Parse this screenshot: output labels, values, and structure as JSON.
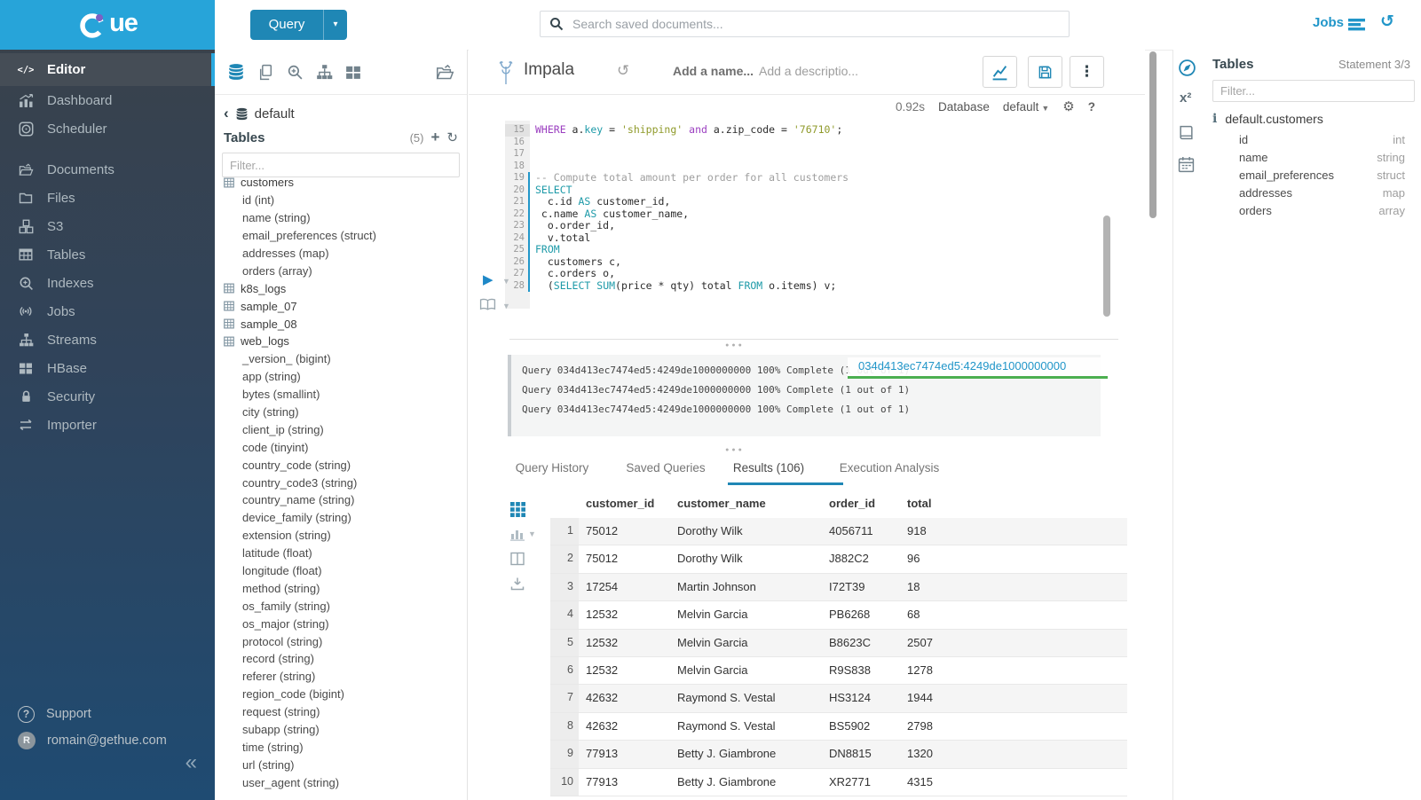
{
  "topbar": {
    "query_button": "Query",
    "search_placeholder": "Search saved documents...",
    "jobs_label": "Jobs"
  },
  "sidebar": {
    "logo_text": "ue",
    "items": [
      {
        "label": "Editor",
        "icon": "code-icon",
        "active": true
      },
      {
        "label": "Dashboard",
        "icon": "dashboard-icon"
      },
      {
        "label": "Scheduler",
        "icon": "scheduler-icon"
      },
      {
        "label": "Documents",
        "icon": "documents-icon",
        "gap_before": true
      },
      {
        "label": "Files",
        "icon": "files-icon"
      },
      {
        "label": "S3",
        "icon": "s3-icon"
      },
      {
        "label": "Tables",
        "icon": "tables-icon"
      },
      {
        "label": "Indexes",
        "icon": "indexes-icon"
      },
      {
        "label": "Jobs",
        "icon": "jobs-icon"
      },
      {
        "label": "Streams",
        "icon": "streams-icon"
      },
      {
        "label": "HBase",
        "icon": "hbase-icon"
      },
      {
        "label": "Security",
        "icon": "security-icon"
      },
      {
        "label": "Importer",
        "icon": "importer-icon"
      }
    ],
    "support_label": "Support",
    "user_email": "romain@gethue.com"
  },
  "left_assist": {
    "database": "default",
    "tables_label": "Tables",
    "tables_count": "(5)",
    "filter_placeholder": "Filter...",
    "tables": [
      {
        "name": "customers",
        "columns": [
          "id (int)",
          "name (string)",
          "email_preferences (struct)",
          "addresses (map)",
          "orders (array)"
        ]
      },
      {
        "name": "k8s_logs",
        "columns": []
      },
      {
        "name": "sample_07",
        "columns": []
      },
      {
        "name": "sample_08",
        "columns": []
      },
      {
        "name": "web_logs",
        "columns": [
          "_version_ (bigint)",
          "app (string)",
          "bytes (smallint)",
          "city (string)",
          "client_ip (string)",
          "code (tinyint)",
          "country_code (string)",
          "country_code3 (string)",
          "country_name (string)",
          "device_family (string)",
          "extension (string)",
          "latitude (float)",
          "longitude (float)",
          "method (string)",
          "os_family (string)",
          "os_major (string)",
          "protocol (string)",
          "record (string)",
          "referer (string)",
          "region_code (bigint)",
          "request (string)",
          "subapp (string)",
          "time (string)",
          "url (string)",
          "user_agent (string)"
        ]
      }
    ]
  },
  "editor": {
    "engine": "Impala",
    "name_placeholder": "Add a name...",
    "description_placeholder": "Add a descriptio...",
    "exec_time": "0.92s",
    "database_label": "Database",
    "database_value": "default"
  },
  "code": {
    "lines": [
      {
        "n": "15",
        "active": true,
        "tokens": [
          [
            "kp",
            "WHERE"
          ],
          [
            "t",
            " a."
          ],
          [
            "kt",
            "key"
          ],
          [
            "t",
            " = "
          ],
          [
            "str",
            "'shipping'"
          ],
          [
            "t",
            " "
          ],
          [
            "kp",
            "and"
          ],
          [
            "t",
            " a.zip_code = "
          ],
          [
            "str",
            "'76710'"
          ],
          [
            "t",
            ";"
          ]
        ]
      },
      {
        "n": "16",
        "tokens": []
      },
      {
        "n": "17",
        "tokens": []
      },
      {
        "n": "18",
        "tokens": []
      },
      {
        "n": "19",
        "stmt": true,
        "tokens": [
          [
            "cmt",
            "-- Compute total amount per order for all customers"
          ]
        ]
      },
      {
        "n": "20",
        "stmt": true,
        "tokens": [
          [
            "kt",
            "SELECT"
          ]
        ]
      },
      {
        "n": "21",
        "stmt": true,
        "tokens": [
          [
            "t",
            "  c.id "
          ],
          [
            "kt",
            "AS"
          ],
          [
            "t",
            " customer_id,"
          ]
        ]
      },
      {
        "n": "22",
        "stmt": true,
        "tokens": [
          [
            "t",
            " c.name "
          ],
          [
            "kt",
            "AS"
          ],
          [
            "t",
            " customer_name,"
          ]
        ]
      },
      {
        "n": "23",
        "stmt": true,
        "tokens": [
          [
            "t",
            "  o.order_id,"
          ]
        ]
      },
      {
        "n": "24",
        "stmt": true,
        "tokens": [
          [
            "t",
            "  v.total"
          ]
        ]
      },
      {
        "n": "25",
        "stmt": true,
        "tokens": [
          [
            "kt",
            "FROM"
          ]
        ]
      },
      {
        "n": "26",
        "stmt": true,
        "tokens": [
          [
            "t",
            "  customers c,"
          ]
        ]
      },
      {
        "n": "27",
        "stmt": true,
        "tokens": [
          [
            "t",
            "  c.orders o,"
          ]
        ]
      },
      {
        "n": "28",
        "stmt": true,
        "tokens": [
          [
            "t",
            "  ("
          ],
          [
            "kt",
            "SELECT"
          ],
          [
            "t",
            " "
          ],
          [
            "kt",
            "SUM"
          ],
          [
            "t",
            "(price * qty) total "
          ],
          [
            "kt",
            "FROM"
          ],
          [
            "t",
            " o.items) v;"
          ]
        ]
      },
      {
        "n": "",
        "tokens": []
      }
    ]
  },
  "logs": {
    "lines": [
      "Query 034d413ec7474ed5:4249de1000000000 100% Complete (1 out of 1)",
      "Query 034d413ec7474ed5:4249de1000000000 100% Complete (1 out of 1)",
      "Query 034d413ec7474ed5:4249de1000000000 100% Complete (1 out of 1)"
    ],
    "query_id_chip": "034d413ec7474ed5:4249de1000000000"
  },
  "tabs": [
    {
      "label": "Query History"
    },
    {
      "label": "Saved Queries"
    },
    {
      "label": "Results (106)",
      "active": true
    },
    {
      "label": "Execution Analysis"
    }
  ],
  "results": {
    "headers": [
      "customer_id",
      "customer_name",
      "order_id",
      "total"
    ],
    "rows": [
      [
        "1",
        "75012",
        "Dorothy Wilk",
        "4056711",
        "918"
      ],
      [
        "2",
        "75012",
        "Dorothy Wilk",
        "J882C2",
        "96"
      ],
      [
        "3",
        "17254",
        "Martin Johnson",
        "I72T39",
        "18"
      ],
      [
        "4",
        "12532",
        "Melvin Garcia",
        "PB6268",
        "68"
      ],
      [
        "5",
        "12532",
        "Melvin Garcia",
        "B8623C",
        "2507"
      ],
      [
        "6",
        "12532",
        "Melvin Garcia",
        "R9S838",
        "1278"
      ],
      [
        "7",
        "42632",
        "Raymond S. Vestal",
        "HS3124",
        "1944"
      ],
      [
        "8",
        "42632",
        "Raymond S. Vestal",
        "BS5902",
        "2798"
      ],
      [
        "9",
        "77913",
        "Betty J. Giambrone",
        "DN8815",
        "1320"
      ],
      [
        "10",
        "77913",
        "Betty J. Giambrone",
        "XR2771",
        "4315"
      ]
    ]
  },
  "right_assist": {
    "title": "Tables",
    "statement": "Statement 3/3",
    "filter_placeholder": "Filter...",
    "table_name": "default.customers",
    "columns": [
      {
        "name": "id",
        "type": "int"
      },
      {
        "name": "name",
        "type": "string"
      },
      {
        "name": "email_preferences",
        "type": "struct"
      },
      {
        "name": "addresses",
        "type": "map"
      },
      {
        "name": "orders",
        "type": "array"
      }
    ]
  },
  "colors": {
    "brand": "#27a4d9",
    "accent": "#1f87b5",
    "link": "#2196c9",
    "chipgreen": "#4caf50",
    "kwpurple": "#9b3fc0",
    "kwteal": "#1d9aa8",
    "strolive": "#8f9a2a"
  }
}
